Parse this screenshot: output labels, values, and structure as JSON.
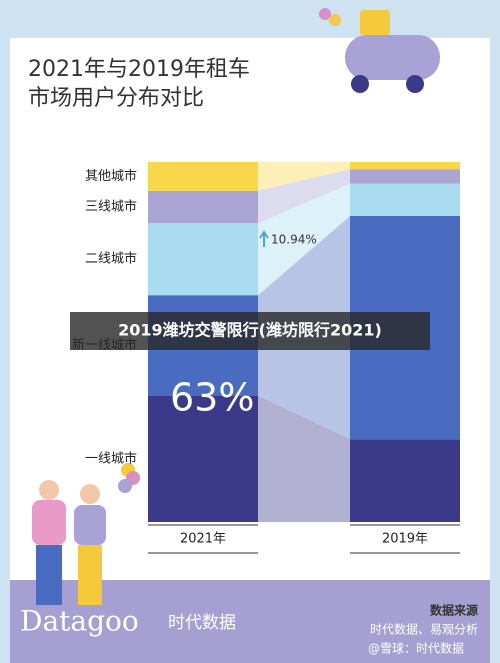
{
  "chart_data": {
    "type": "stacked-bar",
    "title": [
      "2021年与2019年租车",
      "市场用户分布对比"
    ],
    "categories": [
      "2021年",
      "2019年"
    ],
    "series": [
      {
        "name": "一线城市",
        "color": "#3b3a8a",
        "values": [
          35,
          23
        ]
      },
      {
        "name": "新一线城市",
        "color": "#4a6cc0",
        "values": [
          28,
          62
        ]
      },
      {
        "name": "二线城市",
        "color": "#a9dcf1",
        "values": [
          20,
          9
        ]
      },
      {
        "name": "三线城市",
        "color": "#aba5d4",
        "values": [
          9,
          4
        ]
      },
      {
        "name": "其他城市",
        "color": "#f8d84a",
        "values": [
          8,
          2
        ]
      }
    ],
    "annotations": [
      "63%",
      "10.94%"
    ]
  },
  "banner": "2019潍坊交警限行(潍坊限行2021)",
  "footer": {
    "brand": "Datagoo",
    "brand_cn": "时代数据",
    "source_title": "数据来源",
    "source": "时代数据、易观分析",
    "credit": "@雪球：时代数据"
  }
}
